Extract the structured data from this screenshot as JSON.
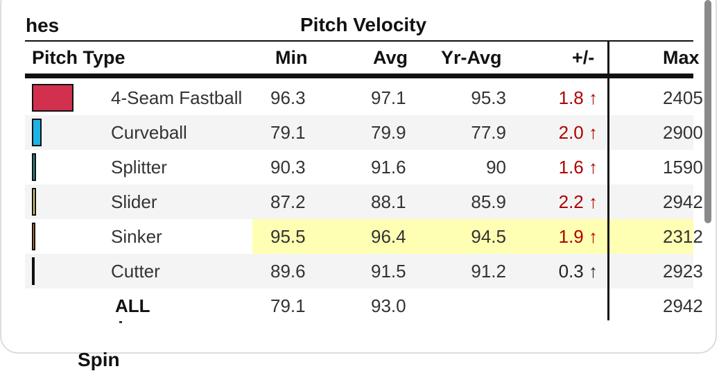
{
  "header": {
    "partial_label": "hes",
    "group_title": "Pitch Velocity"
  },
  "columns": {
    "pitch_type": "Pitch Type",
    "min": "Min",
    "avg": "Avg",
    "yr_avg": "Yr-Avg",
    "diff": "+/-",
    "max": "Max"
  },
  "rows": [
    {
      "name": "4-Seam Fastball",
      "color": "#d1314f",
      "min": "96.3",
      "avg": "97.1",
      "yr_avg": "95.3",
      "diff": "1.8 ↑",
      "max": "2405",
      "diff_dir": "up"
    },
    {
      "name": "Curveball",
      "color": "#1cb4e6",
      "min": "79.1",
      "avg": "79.9",
      "yr_avg": "77.9",
      "diff": "2.0 ↑",
      "max": "2900",
      "diff_dir": "up"
    },
    {
      "name": "Splitter",
      "color": "#2f8a8f",
      "min": "90.3",
      "avg": "91.6",
      "yr_avg": "90",
      "diff": "1.6 ↑",
      "max": "1590",
      "diff_dir": "up"
    },
    {
      "name": "Slider",
      "color": "#e3d27a",
      "min": "87.2",
      "avg": "88.1",
      "yr_avg": "85.9",
      "diff": "2.2 ↑",
      "max": "2942",
      "diff_dir": "up"
    },
    {
      "name": "Sinker",
      "color": "#f08a3c",
      "min": "95.5",
      "avg": "96.4",
      "yr_avg": "94.5",
      "diff": "1.9 ↑",
      "max": "2312",
      "diff_dir": "up",
      "highlight": true
    },
    {
      "name": "Cutter",
      "color": "#6b4a2e",
      "min": "89.6",
      "avg": "91.5",
      "yr_avg": "91.2",
      "diff": "0.3 ↑",
      "max": "2923",
      "diff_dir": "neutral"
    }
  ],
  "total": {
    "name": "ALL",
    "min": "79.1",
    "avg": "93.0",
    "max": "2942"
  },
  "footer": {
    "partial_label": "Spin"
  }
}
